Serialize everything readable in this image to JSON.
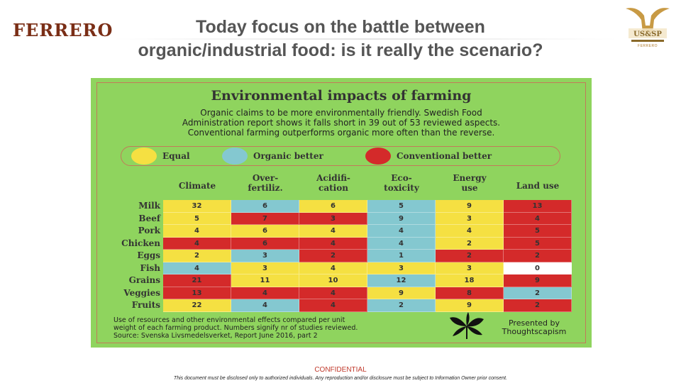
{
  "header": {
    "logo_left": "FERRERO",
    "title_line1": "Today focus on the battle between",
    "title_line2": "organic/industrial food: is it really the scenario?",
    "logo_right_text": "US&SP",
    "logo_right_sub": "FERRERO"
  },
  "infographic": {
    "title": "Environmental impacts of farming",
    "intro_lines": [
      "Organic claims to be more environmentally friendly. Swedish Food",
      "Administration report shows it falls short in 39 out of 53 reviewed aspects.",
      "Conventional farming outperforms organic more often than the reverse."
    ],
    "legend": [
      {
        "label": "Equal",
        "color": "#f5e042"
      },
      {
        "label": "Organic better",
        "color": "#84c8d0"
      },
      {
        "label": "Conventional better",
        "color": "#d42a2a"
      }
    ],
    "columns": [
      {
        "line1": "Climate",
        "line2": ""
      },
      {
        "line1": "Over-",
        "line2": "fertiliz."
      },
      {
        "line1": "Acidifi-",
        "line2": "cation"
      },
      {
        "line1": "Eco-",
        "line2": "toxicity"
      },
      {
        "line1": "Energy",
        "line2": "use"
      },
      {
        "line1": "Land use",
        "line2": ""
      }
    ],
    "rows": [
      {
        "label": "Milk",
        "cells": [
          {
            "v": "32",
            "c": "#f5e042"
          },
          {
            "v": "6",
            "c": "#84c8d0"
          },
          {
            "v": "6",
            "c": "#f5e042"
          },
          {
            "v": "5",
            "c": "#84c8d0"
          },
          {
            "v": "9",
            "c": "#f5e042"
          },
          {
            "v": "13",
            "c": "#d42a2a"
          }
        ]
      },
      {
        "label": "Beef",
        "cells": [
          {
            "v": "5",
            "c": "#f5e042"
          },
          {
            "v": "7",
            "c": "#d42a2a"
          },
          {
            "v": "3",
            "c": "#d42a2a"
          },
          {
            "v": "9",
            "c": "#84c8d0"
          },
          {
            "v": "3",
            "c": "#f5e042"
          },
          {
            "v": "4",
            "c": "#d42a2a"
          }
        ]
      },
      {
        "label": "Pork",
        "cells": [
          {
            "v": "4",
            "c": "#f5e042"
          },
          {
            "v": "6",
            "c": "#f5e042"
          },
          {
            "v": "4",
            "c": "#f5e042"
          },
          {
            "v": "4",
            "c": "#84c8d0"
          },
          {
            "v": "4",
            "c": "#f5e042"
          },
          {
            "v": "5",
            "c": "#d42a2a"
          }
        ]
      },
      {
        "label": "Chicken",
        "cells": [
          {
            "v": "4",
            "c": "#d42a2a"
          },
          {
            "v": "6",
            "c": "#d42a2a"
          },
          {
            "v": "4",
            "c": "#d42a2a"
          },
          {
            "v": "4",
            "c": "#84c8d0"
          },
          {
            "v": "2",
            "c": "#f5e042"
          },
          {
            "v": "5",
            "c": "#d42a2a"
          }
        ]
      },
      {
        "label": "Eggs",
        "cells": [
          {
            "v": "2",
            "c": "#f5e042"
          },
          {
            "v": "3",
            "c": "#84c8d0"
          },
          {
            "v": "2",
            "c": "#d42a2a"
          },
          {
            "v": "1",
            "c": "#84c8d0"
          },
          {
            "v": "2",
            "c": "#d42a2a"
          },
          {
            "v": "2",
            "c": "#d42a2a"
          }
        ]
      },
      {
        "label": "Fish",
        "cells": [
          {
            "v": "4",
            "c": "#84c8d0"
          },
          {
            "v": "3",
            "c": "#f5e042"
          },
          {
            "v": "4",
            "c": "#f5e042"
          },
          {
            "v": "3",
            "c": "#f5e042"
          },
          {
            "v": "3",
            "c": "#f5e042"
          },
          {
            "v": "0",
            "c": "#ffffff"
          }
        ]
      },
      {
        "label": "Grains",
        "cells": [
          {
            "v": "21",
            "c": "#d42a2a"
          },
          {
            "v": "11",
            "c": "#f5e042"
          },
          {
            "v": "10",
            "c": "#f5e042"
          },
          {
            "v": "12",
            "c": "#84c8d0"
          },
          {
            "v": "18",
            "c": "#f5e042"
          },
          {
            "v": "9",
            "c": "#d42a2a"
          }
        ]
      },
      {
        "label": "Veggies",
        "cells": [
          {
            "v": "13",
            "c": "#d42a2a"
          },
          {
            "v": "4",
            "c": "#d42a2a"
          },
          {
            "v": "4",
            "c": "#d42a2a"
          },
          {
            "v": "9",
            "c": "#f5e042"
          },
          {
            "v": "8",
            "c": "#d42a2a"
          },
          {
            "v": "2",
            "c": "#84c8d0"
          }
        ]
      },
      {
        "label": "Fruits",
        "cells": [
          {
            "v": "22",
            "c": "#f5e042"
          },
          {
            "v": "4",
            "c": "#84c8d0"
          },
          {
            "v": "4",
            "c": "#d42a2a"
          },
          {
            "v": "2",
            "c": "#84c8d0"
          },
          {
            "v": "9",
            "c": "#f5e042"
          },
          {
            "v": "2",
            "c": "#d42a2a"
          }
        ]
      }
    ],
    "footnote_lines": [
      "Use of resources and other environmental effects compared per unit",
      "weight of each farming product. Numbers signify nr of studies reviewed.",
      "Source: Svenska Livsmedelsverket, Report June 2016, part 2"
    ],
    "presented_line1": "Presented by",
    "presented_line2": "Thoughtscapism"
  },
  "footer": {
    "confidential": "CONFIDENTIAL",
    "disclaimer": "This document must be disclosed only to authorized individuals. Any reproduction and/or disclosure must be subject to Information Owner prior consent."
  }
}
